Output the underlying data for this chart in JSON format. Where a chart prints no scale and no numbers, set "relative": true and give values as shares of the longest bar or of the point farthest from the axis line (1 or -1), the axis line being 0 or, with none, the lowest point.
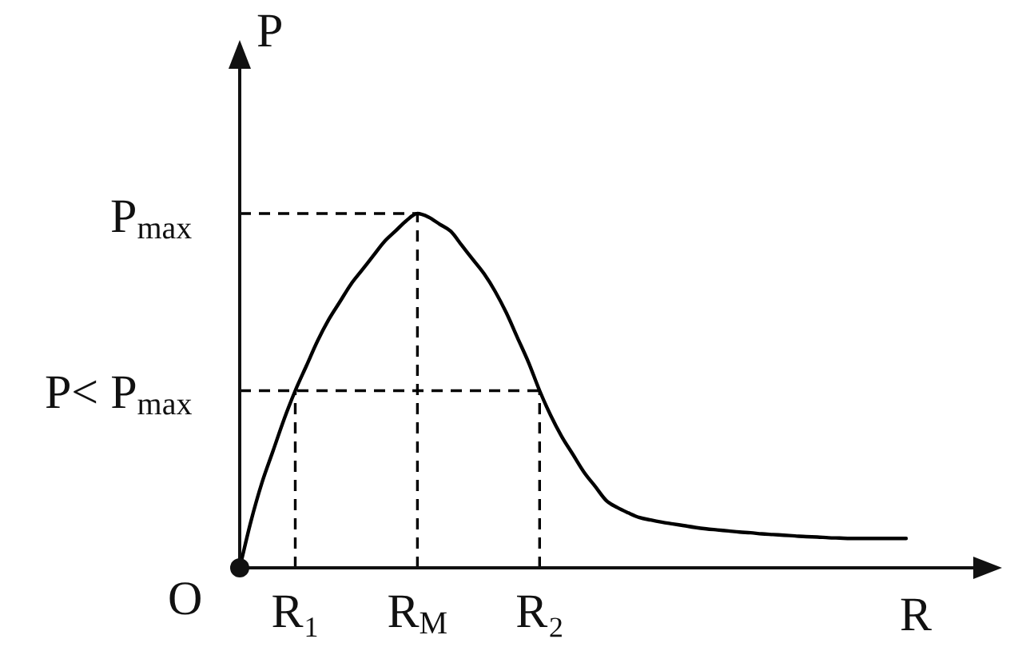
{
  "chart_data": {
    "type": "line",
    "relative": true,
    "xlabel": "R",
    "ylabel": "P",
    "marker": "none",
    "categories": [
      null,
      null,
      null,
      null,
      null,
      "R₁",
      null,
      null,
      null,
      null,
      null,
      null,
      null,
      null,
      null,
      null,
      "R$_{M}$",
      null,
      null,
      null,
      null,
      null,
      null,
      null,
      null,
      null,
      null,
      "R₂",
      null,
      null,
      null,
      null,
      null,
      null,
      null,
      null,
      null,
      null,
      null,
      null,
      null,
      null,
      null,
      null,
      null,
      null,
      null,
      null,
      null,
      null,
      null,
      null,
      null,
      null,
      null,
      null,
      null,
      null,
      null,
      null,
      null
    ],
    "series": [
      {
        "color": "#000000",
        "values": [
          0,
          0.13,
          0.24,
          0.33,
          0.42,
          0.5,
          0.57,
          0.64,
          0.7,
          0.75,
          0.8,
          0.84,
          0.88,
          0.92,
          0.95,
          0.98,
          1,
          0.99,
          0.97,
          0.95,
          0.91,
          0.87,
          0.83,
          0.78,
          0.72,
          0.65,
          0.58,
          0.5,
          0.43,
          0.37,
          0.32,
          0.27,
          0.23,
          0.19,
          0.17,
          0.155,
          0.142,
          0.135,
          0.129,
          0.124,
          0.119,
          0.114,
          0.11,
          0.107,
          0.104,
          0.101,
          0.099,
          0.096,
          0.094,
          0.092,
          0.09,
          0.088,
          0.087,
          0.085,
          0.084,
          0.083,
          0.083,
          0.083,
          0.083,
          0.083,
          0.083
        ]
      }
    ],
    "ref_lines": [
      {
        "axis": "y",
        "value": 1,
        "label": "P$_{max}$",
        "color": "#000000",
        "line_style": "dashed"
      },
      {
        "axis": "y",
        "value": 0.5,
        "label": "P< P$_{max}$",
        "color": "#000000",
        "line_style": "dashed"
      },
      {
        "axis": "x",
        "value": "R₁",
        "color": "#000000",
        "line_style": "dashed"
      },
      {
        "axis": "x",
        "value": "R$_{M}$",
        "color": "#000000",
        "line_style": "dashed"
      },
      {
        "axis": "x",
        "value": "R₂",
        "color": "#000000",
        "line_style": "dashed"
      }
    ],
    "annotations": [
      "O"
    ]
  }
}
